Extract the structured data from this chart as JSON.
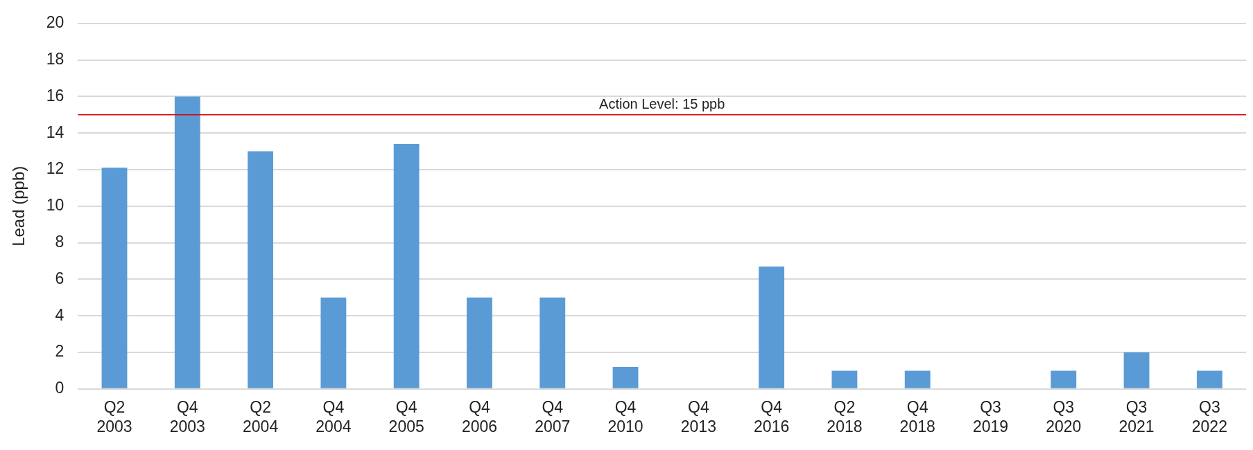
{
  "chart_data": {
    "type": "bar",
    "ylabel": "Lead (ppb)",
    "categories": [
      "Q2 2003",
      "Q4 2003",
      "Q2 2004",
      "Q4 2004",
      "Q4 2005",
      "Q4 2006",
      "Q4 2007",
      "Q4 2010",
      "Q4 2013",
      "Q4 2016",
      "Q2 2018",
      "Q4 2018",
      "Q3 2019",
      "Q3 2020",
      "Q3 2021",
      "Q3 2022"
    ],
    "values": [
      12.1,
      16,
      13,
      5,
      13.4,
      5,
      5,
      1.2,
      0,
      6.7,
      1,
      1,
      0,
      1,
      2,
      1
    ],
    "color": "#5b9bd5",
    "ylim": [
      0,
      20
    ],
    "yticks": [
      0,
      2,
      4,
      6,
      8,
      10,
      12,
      14,
      16,
      18,
      20
    ],
    "grid": "y",
    "ref_lines": [
      {
        "axis": "y",
        "value": 15,
        "label": "Action Level: 15 ppb",
        "color": "#e00000"
      }
    ]
  }
}
